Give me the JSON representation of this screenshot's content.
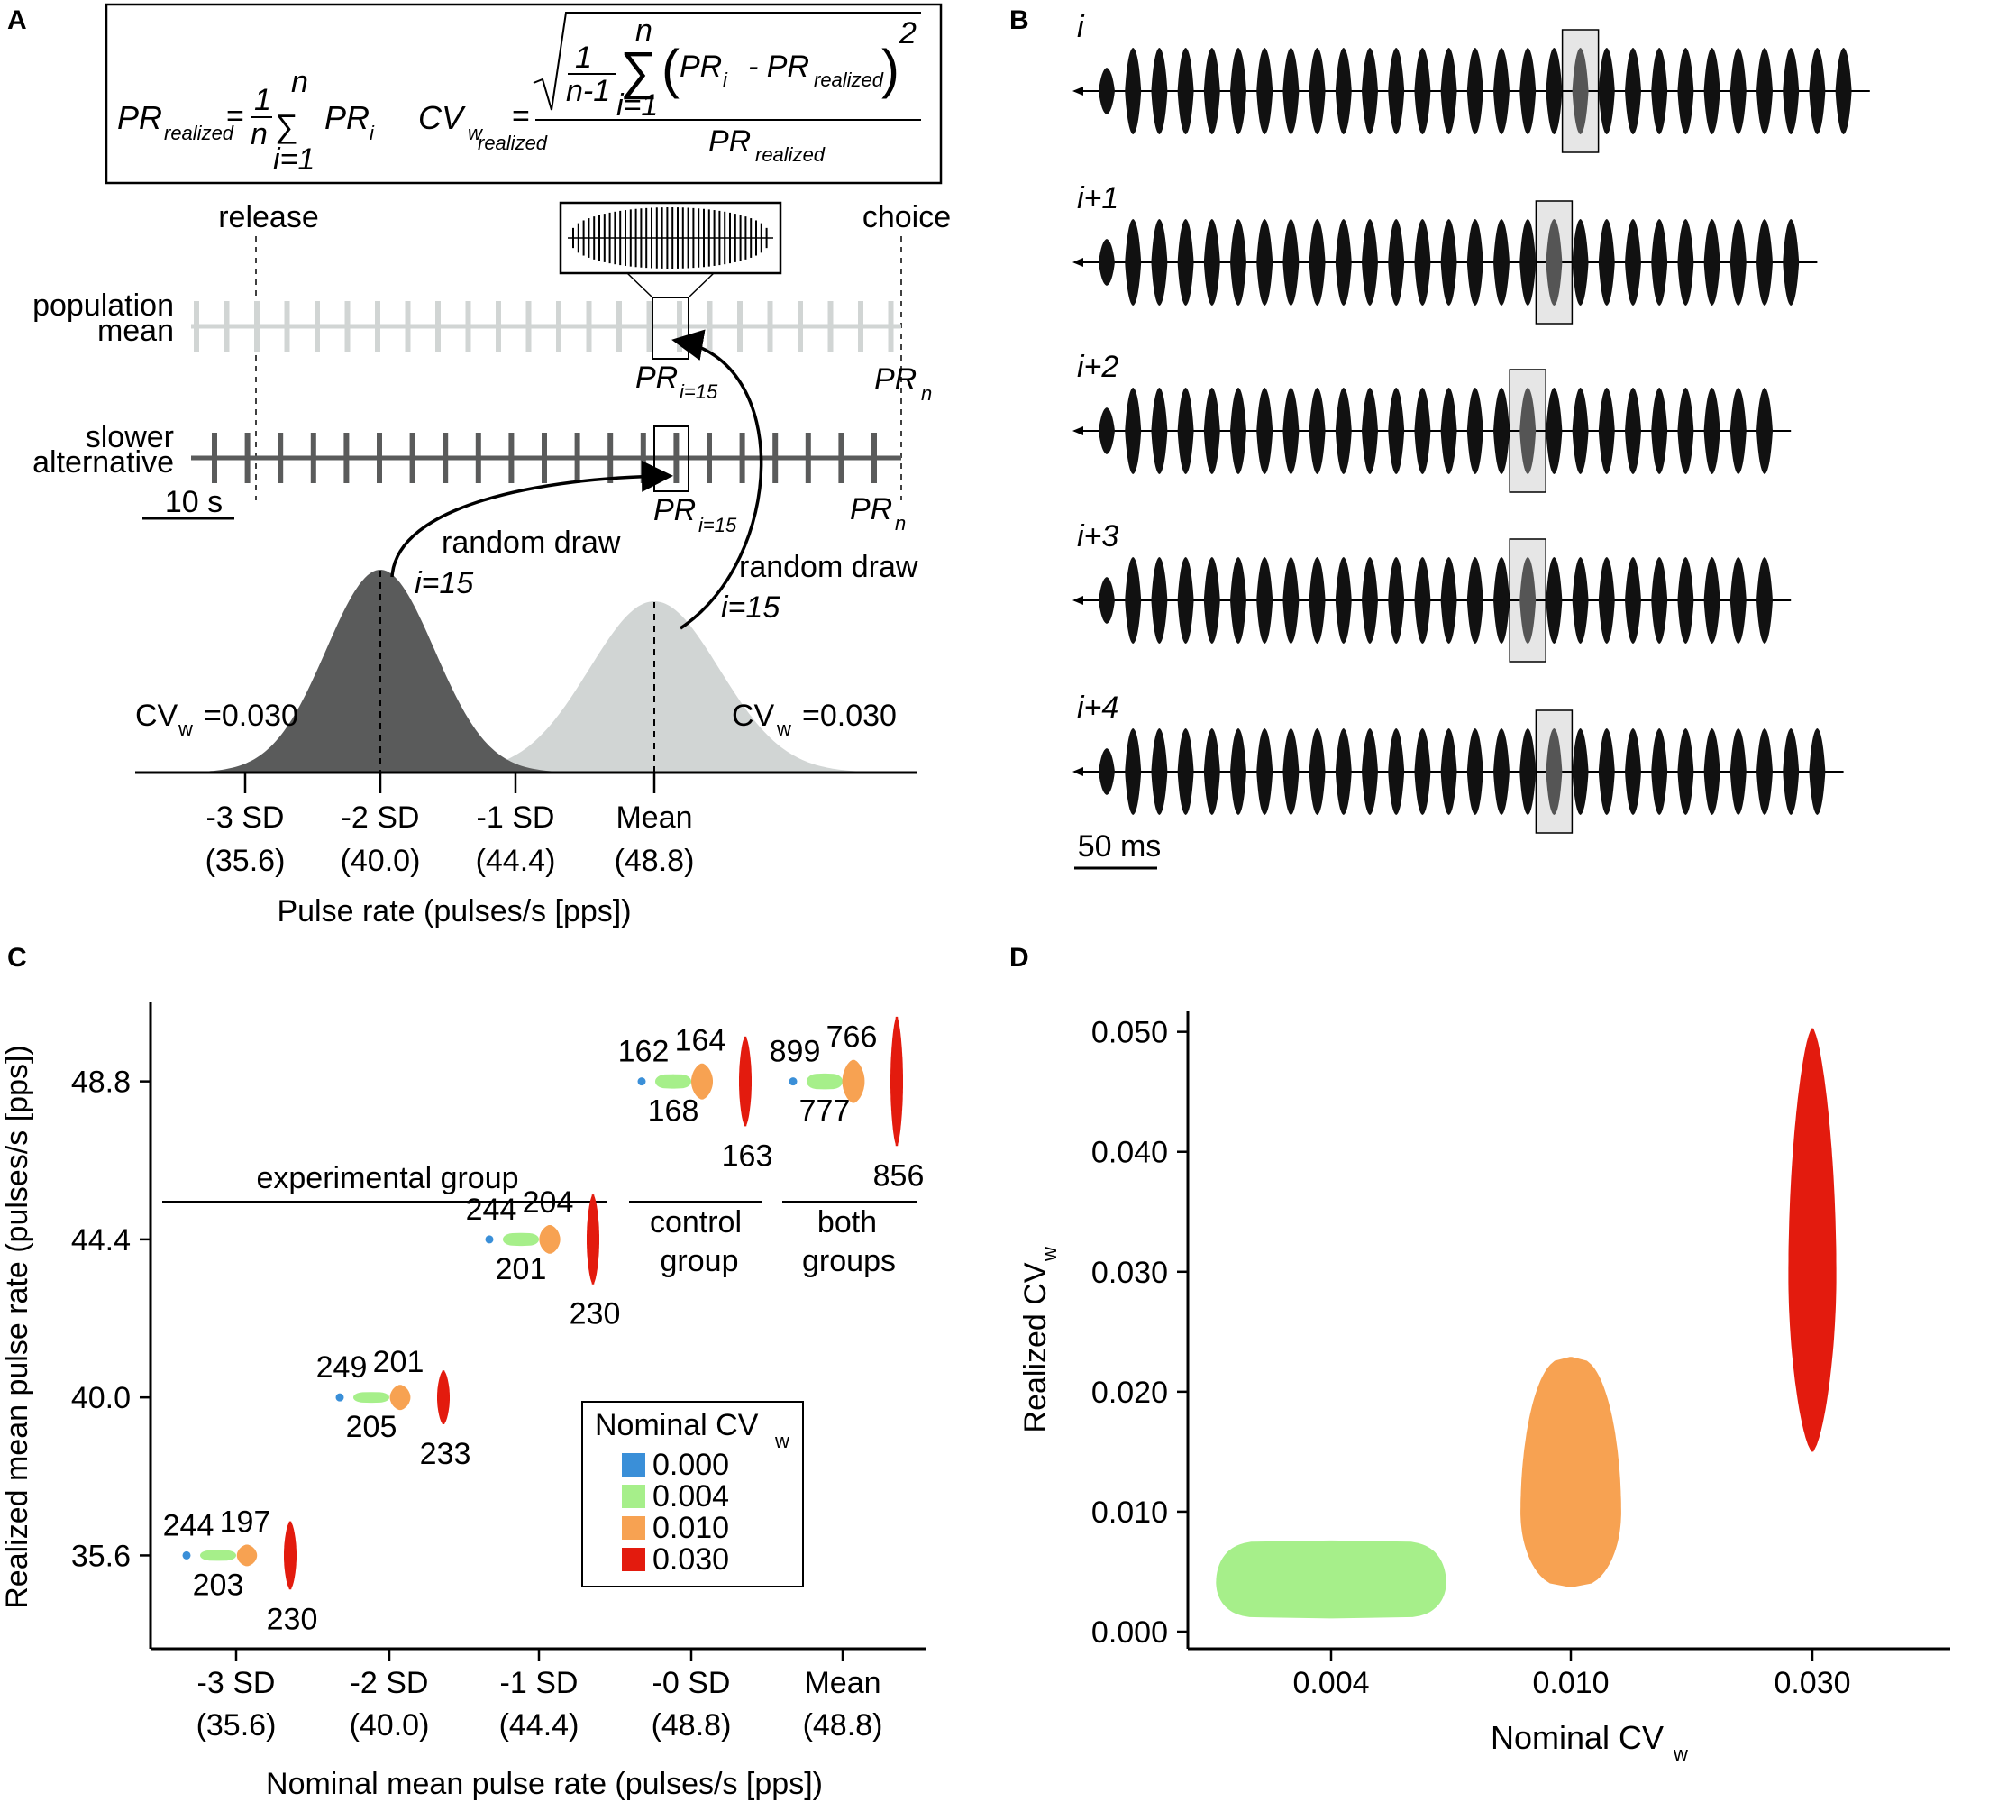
{
  "colors": {
    "cv0": "#3a8fd8",
    "cv004": "#a6ef8a",
    "cv010": "#f7a252",
    "cv030": "#e31b0e",
    "dark": "#5a5b5b",
    "light": "#d1d5d4",
    "shade": "#e6e6e6"
  },
  "panelA": {
    "letter": "A",
    "formula1": {
      "lhs": "PR",
      "lhs_sub": "realized",
      "eq": "=",
      "frac_num": "1",
      "frac_den": "n",
      "sum_top": "n",
      "sum_bot": "i=1",
      "term": "PR",
      "term_sub": "i"
    },
    "formula2": {
      "lhs": "CV",
      "lhs_sub": "w",
      "lhs_subsub": "realized",
      "eq": "=",
      "frac_num": "1",
      "frac_den": "n-1",
      "sum_top": "n",
      "sum_bot": "i=1",
      "term_a": "PR",
      "term_a_sub": "i",
      "minus": "- PR",
      "term_b_sub": "realized",
      "power": "2",
      "den": "PR",
      "den_sub": "realized"
    },
    "release": "release",
    "choice": "choice",
    "pop_mean_line1": "population",
    "pop_mean_line2": "mean",
    "slow_line1": "slower",
    "slow_line2": "alternative",
    "scale": "10 s",
    "pr_i15": "PR",
    "pr_i15_sub": "i=15",
    "pr_n": "PR",
    "pr_n_sub": "n",
    "random_draw": "random draw",
    "i15": "i=15",
    "cv_left": "CV",
    "cv_left_sub": "w",
    "cv_left_val": "=0.030",
    "cv_right": "CV",
    "cv_right_sub": "w",
    "cv_right_val": "=0.030",
    "ticks": [
      {
        "sd": "-3 SD",
        "val": "(35.6)"
      },
      {
        "sd": "-2 SD",
        "val": "(40.0)"
      },
      {
        "sd": "-1 SD",
        "val": "(44.4)"
      },
      {
        "sd": "Mean",
        "val": "(48.8)"
      }
    ],
    "xlabel": "Pulse rate (pulses/s [pps])"
  },
  "panelB": {
    "letter": "B",
    "rows": [
      {
        "label": "i",
        "pulses": 29,
        "highlight": 18
      },
      {
        "label": "i+1",
        "pulses": 27,
        "highlight": 17
      },
      {
        "label": "i+2",
        "pulses": 26,
        "highlight": 16
      },
      {
        "label": "i+3",
        "pulses": 26,
        "highlight": 16
      },
      {
        "label": "i+4",
        "pulses": 28,
        "highlight": 17
      }
    ],
    "scale": "50 ms"
  },
  "chart_data": [
    {
      "panel": "C",
      "type": "violin",
      "letter": "C",
      "xlabel": "Nominal mean pulse rate (pulses/s [pps])",
      "ylabel": "Realized mean pulse rate (pulses/s [pps])",
      "ylim": [
        33.0,
        51.0
      ],
      "yticks": [
        {
          "value": 35.6,
          "label": "35.6"
        },
        {
          "value": 40.0,
          "label": "40.0"
        },
        {
          "value": 44.4,
          "label": "44.4"
        },
        {
          "value": 48.8,
          "label": "48.8"
        }
      ],
      "categories": [
        {
          "sd": "-3 SD",
          "val": "(35.6)"
        },
        {
          "sd": "-2 SD",
          "val": "(40.0)"
        },
        {
          "sd": "-1 SD",
          "val": "(44.4)"
        },
        {
          "sd": "-0 SD",
          "val": "(48.8)"
        },
        {
          "sd": "Mean",
          "val": "(48.8)"
        }
      ],
      "groups": [
        {
          "category": 0,
          "center": 35.6,
          "counts": [
            "244",
            "203",
            "197",
            "230"
          ],
          "spreads": [
            0.0,
            0.15,
            0.3,
            0.95
          ]
        },
        {
          "category": 1,
          "center": 40.0,
          "counts": [
            "249",
            "205",
            "201",
            "233"
          ],
          "spreads": [
            0.0,
            0.15,
            0.35,
            0.75
          ]
        },
        {
          "category": 2,
          "center": 44.4,
          "counts": [
            "244",
            "201",
            "204",
            "230"
          ],
          "spreads": [
            0.0,
            0.18,
            0.4,
            1.25
          ]
        },
        {
          "category": 3,
          "center": 48.8,
          "counts": [
            "162",
            "168",
            "164",
            "163"
          ],
          "spreads": [
            0.0,
            0.2,
            0.5,
            1.25
          ]
        },
        {
          "category": 4,
          "center": 48.8,
          "counts": [
            "899",
            "777",
            "766",
            "856"
          ],
          "spreads": [
            0.0,
            0.22,
            0.6,
            1.8
          ]
        }
      ],
      "group_labels": {
        "experimental": "experimental group",
        "control_line1": "control",
        "control_line2": "group",
        "both_line1": "both",
        "both_line2": "groups"
      },
      "legend": {
        "title": "Nominal CV",
        "title_sub": "w",
        "entries": [
          {
            "label": "0.000",
            "color": "#3a8fd8"
          },
          {
            "label": "0.004",
            "color": "#a6ef8a"
          },
          {
            "label": "0.010",
            "color": "#f7a252"
          },
          {
            "label": "0.030",
            "color": "#e31b0e"
          }
        ]
      }
    },
    {
      "panel": "D",
      "type": "violin",
      "letter": "D",
      "xlabel": "Nominal CV",
      "xlabel_sub": "w",
      "ylabel": "Realized CV",
      "ylabel_sub": "w",
      "ylim": [
        0.0,
        0.0505
      ],
      "yticks": [
        {
          "value": 0.0,
          "label": "0.000"
        },
        {
          "value": 0.01,
          "label": "0.010"
        },
        {
          "value": 0.02,
          "label": "0.020"
        },
        {
          "value": 0.03,
          "label": "0.030"
        },
        {
          "value": 0.04,
          "label": "0.040"
        },
        {
          "value": 0.05,
          "label": "0.050"
        }
      ],
      "categories": [
        "0.004",
        "0.010",
        "0.030"
      ],
      "series": [
        {
          "name": "0.004",
          "color": "#a6ef8a",
          "min": 0.0011,
          "max": 0.0076,
          "mode": 0.0041,
          "halfwidth": 0.48
        },
        {
          "name": "0.010",
          "color": "#f7a252",
          "min": 0.0037,
          "max": 0.0229,
          "mode": 0.0099,
          "halfwidth": 0.21
        },
        {
          "name": "0.030",
          "color": "#e31b0e",
          "min": 0.015,
          "max": 0.0503,
          "mode": 0.0298,
          "halfwidth": 0.1
        }
      ]
    }
  ]
}
